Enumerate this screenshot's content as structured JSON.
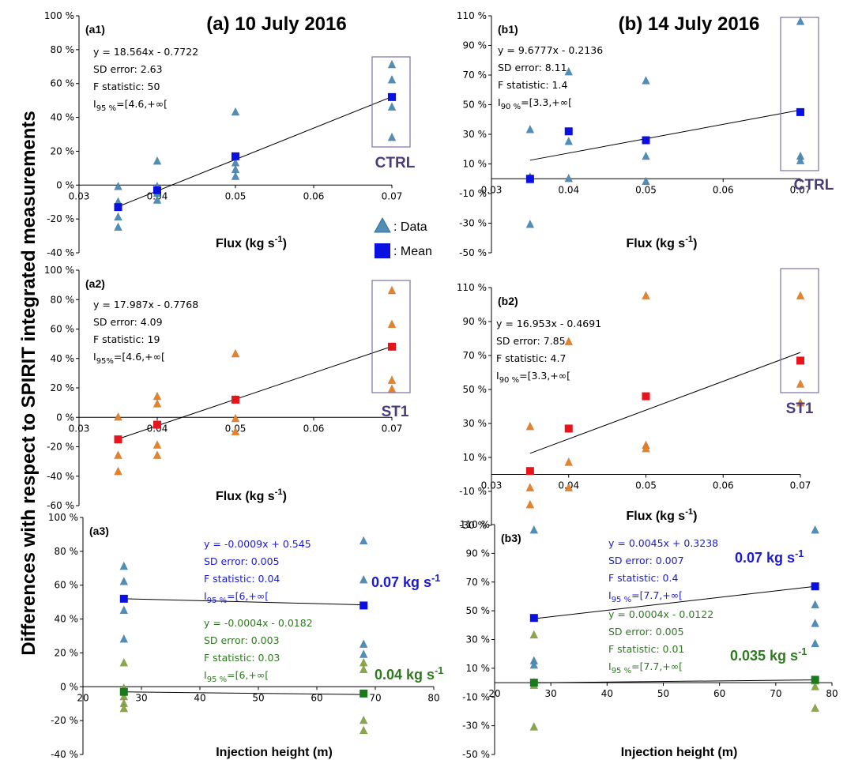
{
  "figure": {
    "ylabel": "Differences with respect to SPIRIT integrated measurements",
    "col_a_title": "(a) 10 July 2016",
    "col_b_title": "(b) 14 July 2016",
    "legend": {
      "data": ": Data",
      "mean": ": Mean"
    }
  },
  "colors": {
    "ctrl_data": "#4f8eb8",
    "ctrl_mean": "#0a10e0",
    "st1_data": "#e8822a",
    "st1_mean": "#e8141c",
    "low_data": "#8aa84a",
    "low_mean": "#1a7a1a",
    "box": "#7e6fa6",
    "blue_text": "#1a1ad6",
    "green_text": "#2d7a1f"
  },
  "chart_data": [
    {
      "id": "a1",
      "type": "scatter",
      "panel_label": "(a1)",
      "xlabel": "Flux (kg s⁻¹)",
      "xlim": [
        0.03,
        0.07
      ],
      "xticks": [
        "0.03",
        "0.04",
        "0.05",
        "0.06",
        "0.07"
      ],
      "ylim": [
        -40,
        100
      ],
      "yticks": [
        "-40 %",
        "-20 %",
        "0 %",
        "20 %",
        "40 %",
        "60 %",
        "80 %",
        "100 %"
      ],
      "box_label": "CTRL",
      "annotations": [
        "y = 18.564x - 0.7722",
        "SD error: 2.63",
        "F statistic: 50",
        "I95 %=[4.6,+∞["
      ],
      "series": [
        {
          "kind": "data",
          "points": [
            [
              0.035,
              -1
            ],
            [
              0.035,
              -10
            ],
            [
              0.035,
              -19
            ],
            [
              0.035,
              -25
            ],
            [
              0.04,
              14
            ],
            [
              0.04,
              -1
            ],
            [
              0.04,
              -5
            ],
            [
              0.04,
              -9
            ],
            [
              0.05,
              43
            ],
            [
              0.05,
              13
            ],
            [
              0.05,
              9
            ],
            [
              0.05,
              5
            ],
            [
              0.07,
              71
            ],
            [
              0.07,
              62
            ],
            [
              0.07,
              46
            ],
            [
              0.07,
              28
            ]
          ]
        },
        {
          "kind": "mean",
          "points": [
            [
              0.035,
              -13
            ],
            [
              0.04,
              -3
            ],
            [
              0.05,
              17
            ],
            [
              0.07,
              52
            ]
          ]
        }
      ],
      "fit": [
        [
          0.035,
          -12.7
        ],
        [
          0.07,
          52.2
        ]
      ]
    },
    {
      "id": "b1",
      "type": "scatter",
      "panel_label": "(b1)",
      "xlabel": "Flux (kg s⁻¹)",
      "xlim": [
        0.03,
        0.07
      ],
      "xticks": [
        "0.03",
        "0.04",
        "0.05",
        "0.06",
        "0.07"
      ],
      "ylim": [
        -50,
        110
      ],
      "yticks": [
        "-50 %",
        "-30 %",
        "-10 %",
        "10 %",
        "30 %",
        "50 %",
        "70 %",
        "90 %",
        "110 %"
      ],
      "box_label": "CTRL",
      "annotations": [
        "y = 9.6777x - 0.2136",
        "SD error:   8.11",
        "F statistic: 1.4",
        "I90 %=[3.3,+∞["
      ],
      "series": [
        {
          "kind": "data",
          "points": [
            [
              0.035,
              33
            ],
            [
              0.035,
              1
            ],
            [
              0.035,
              -1
            ],
            [
              0.035,
              -31
            ],
            [
              0.04,
              72
            ],
            [
              0.04,
              25
            ],
            [
              0.04,
              0
            ],
            [
              0.05,
              66
            ],
            [
              0.05,
              15
            ],
            [
              0.05,
              -2
            ],
            [
              0.07,
              106
            ],
            [
              0.07,
              15
            ],
            [
              0.07,
              12
            ]
          ]
        },
        {
          "kind": "mean",
          "points": [
            [
              0.035,
              0
            ],
            [
              0.04,
              32
            ],
            [
              0.05,
              26
            ],
            [
              0.07,
              45
            ]
          ]
        }
      ],
      "fit": [
        [
          0.035,
          12.5
        ],
        [
          0.07,
          46.4
        ]
      ]
    },
    {
      "id": "a2",
      "type": "scatter",
      "panel_label": "(a2)",
      "xlabel": "Flux (kg s⁻¹)",
      "xlim": [
        0.03,
        0.07
      ],
      "xticks": [
        "0.03",
        "0.04",
        "0.05",
        "0.06",
        "0.07"
      ],
      "ylim": [
        -60,
        100
      ],
      "yticks": [
        "-60 %",
        "-40 %",
        "-20 %",
        "0 %",
        "20 %",
        "40 %",
        "60 %",
        "80 %",
        "100 %"
      ],
      "box_label": "ST1",
      "annotations": [
        "y = 17.987x - 0.7768",
        "SD error: 4.09",
        "F statistic: 19",
        "I95%=[4.6,+∞["
      ],
      "series": [
        {
          "kind": "data",
          "points": [
            [
              0.035,
              0
            ],
            [
              0.035,
              -26
            ],
            [
              0.035,
              -37
            ],
            [
              0.04,
              14
            ],
            [
              0.04,
              9
            ],
            [
              0.04,
              -19
            ],
            [
              0.04,
              -26
            ],
            [
              0.05,
              43
            ],
            [
              0.05,
              12
            ],
            [
              0.05,
              -1
            ],
            [
              0.05,
              -10
            ],
            [
              0.07,
              86
            ],
            [
              0.07,
              63
            ],
            [
              0.07,
              25
            ],
            [
              0.07,
              19
            ]
          ]
        },
        {
          "kind": "mean",
          "points": [
            [
              0.035,
              -15
            ],
            [
              0.04,
              -5
            ],
            [
              0.05,
              12
            ],
            [
              0.07,
              48
            ]
          ]
        }
      ],
      "fit": [
        [
          0.035,
          -14.7
        ],
        [
          0.07,
          48.2
        ]
      ]
    },
    {
      "id": "b2",
      "type": "scatter",
      "panel_label": "(b2)",
      "xlabel": "Flux (kg s⁻¹)",
      "xlim": [
        0.03,
        0.07
      ],
      "xticks": [
        "0.03",
        "0.04",
        "0.05",
        "0.06",
        "0.07"
      ],
      "ylim": [
        -30,
        110
      ],
      "yticks": [
        "-30 %",
        "-10 %",
        "10 %",
        "30 %",
        "50 %",
        "70 %",
        "90 %",
        "110 %"
      ],
      "box_label": "ST1",
      "annotations": [
        "y = 16.953x - 0.4691",
        "SD error:   7.85",
        "F statistic: 4.7",
        "I90 %=[3.3,+∞["
      ],
      "series": [
        {
          "kind": "data",
          "points": [
            [
              0.035,
              28
            ],
            [
              0.035,
              -8
            ],
            [
              0.035,
              -18
            ],
            [
              0.04,
              78
            ],
            [
              0.04,
              7
            ],
            [
              0.04,
              -8
            ],
            [
              0.05,
              105
            ],
            [
              0.05,
              17
            ],
            [
              0.05,
              15
            ],
            [
              0.07,
              105
            ],
            [
              0.07,
              53
            ],
            [
              0.07,
              42
            ]
          ]
        },
        {
          "kind": "mean",
          "points": [
            [
              0.035,
              2
            ],
            [
              0.04,
              27
            ],
            [
              0.05,
              46
            ],
            [
              0.07,
              67
            ]
          ]
        }
      ],
      "fit": [
        [
          0.035,
          12.4
        ],
        [
          0.07,
          71.8
        ]
      ]
    },
    {
      "id": "a3",
      "type": "scatter",
      "panel_label": "(a3)",
      "xlabel": "Injection height (m)",
      "xlim": [
        20,
        80
      ],
      "xticks": [
        "20",
        "30",
        "40",
        "50",
        "60",
        "70",
        "80"
      ],
      "ylim": [
        -40,
        100
      ],
      "yticks": [
        "-40 %",
        "-20 %",
        "0 %",
        "20 %",
        "40 %",
        "60 %",
        "80 %",
        "100 %"
      ],
      "flux_high": "0.07 kg s⁻¹",
      "flux_low": "0.04 kg s⁻¹",
      "annotations_high": [
        "y = -0.0009x + 0.545",
        "SD error: 0.005",
        "F statistic: 0.04",
        "I95 %=[6,+∞["
      ],
      "annotations_low": [
        "y = -0.0004x - 0.0182",
        "SD error: 0.003",
        "F statistic: 0.03",
        "I95 %=[6,+∞["
      ],
      "series": [
        {
          "kind": "data_high",
          "points": [
            [
              27,
              71
            ],
            [
              27,
              62
            ],
            [
              27,
              45
            ],
            [
              27,
              28
            ],
            [
              68,
              86
            ],
            [
              68,
              63
            ],
            [
              68,
              25
            ],
            [
              68,
              19
            ]
          ]
        },
        {
          "kind": "data_low",
          "points": [
            [
              27,
              14
            ],
            [
              27,
              -1
            ],
            [
              27,
              -6
            ],
            [
              27,
              -10
            ],
            [
              27,
              -13
            ],
            [
              68,
              14
            ],
            [
              68,
              10
            ],
            [
              68,
              -20
            ],
            [
              68,
              -26
            ]
          ]
        },
        {
          "kind": "mean_high",
          "points": [
            [
              27,
              52
            ],
            [
              68,
              48
            ]
          ]
        },
        {
          "kind": "mean_low",
          "points": [
            [
              27,
              -3
            ],
            [
              68,
              -4
            ]
          ]
        }
      ],
      "fit_high": [
        [
          27,
          52
        ],
        [
          68,
          48.4
        ]
      ],
      "fit_low": [
        [
          27,
          -3
        ],
        [
          68,
          -4.6
        ]
      ]
    },
    {
      "id": "b3",
      "type": "scatter",
      "panel_label": "(b3)",
      "xlabel": "Injection height (m)",
      "xlim": [
        20,
        80
      ],
      "xticks": [
        "20",
        "30",
        "40",
        "50",
        "60",
        "70",
        "80"
      ],
      "ylim": [
        -50,
        110
      ],
      "yticks": [
        "-50 %",
        "-30 %",
        "-10 %",
        "10 %",
        "30 %",
        "50 %",
        "70 %",
        "90 %",
        "110 %"
      ],
      "flux_high": "0.07 kg s⁻¹",
      "flux_low": "0.035 kg s⁻¹",
      "annotations_high": [
        "y = 0.0045x + 0.3238",
        "SD error: 0.007",
        "F statistic: 0.4",
        "I95 %=[7.7,+∞["
      ],
      "annotations_low": [
        "y = 0.0004x - 0.0122",
        "SD error: 0.005",
        "F statistic: 0.01",
        "I95 %=[7.7,+∞["
      ],
      "series": [
        {
          "kind": "data_high",
          "points": [
            [
              27,
              106
            ],
            [
              27,
              15
            ],
            [
              27,
              12
            ],
            [
              77,
              106
            ],
            [
              77,
              54
            ],
            [
              77,
              41
            ],
            [
              77,
              27
            ]
          ]
        },
        {
          "kind": "data_low",
          "points": [
            [
              27,
              33
            ],
            [
              27,
              0
            ],
            [
              27,
              -2
            ],
            [
              27,
              -31
            ],
            [
              77,
              1
            ],
            [
              77,
              -3
            ],
            [
              77,
              -18
            ]
          ]
        },
        {
          "kind": "mean_high",
          "points": [
            [
              27,
              45
            ],
            [
              77,
              67
            ]
          ]
        },
        {
          "kind": "mean_low",
          "points": [
            [
              27,
              0
            ],
            [
              77,
              2
            ]
          ]
        }
      ],
      "fit_high": [
        [
          27,
          44.5
        ],
        [
          77,
          67
        ]
      ],
      "fit_low": [
        [
          27,
          -0.1
        ],
        [
          77,
          1.9
        ]
      ]
    }
  ]
}
